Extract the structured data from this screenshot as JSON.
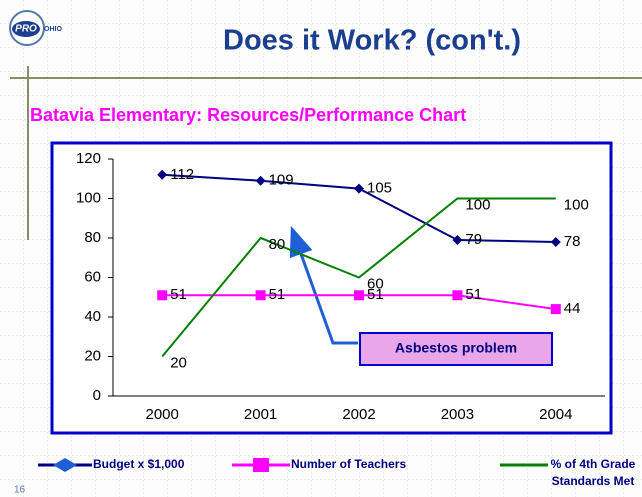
{
  "header": {
    "logo_text": "PRO",
    "logo_subtext": "OHIO",
    "title": "Does it Work? (con't.)",
    "slide_number": "16"
  },
  "chart_data": {
    "type": "line",
    "title": "Batavia Elementary: Resources/Performance Chart",
    "categories": [
      "2000",
      "2001",
      "2002",
      "2003",
      "2004"
    ],
    "series": [
      {
        "name": "Budget x $1,000",
        "color": "#000080",
        "marker": "diamond",
        "values": [
          112,
          109,
          105,
          79,
          78
        ]
      },
      {
        "name": "Number of Teachers",
        "color": "#ff00ff",
        "marker": "square",
        "values": [
          51,
          51,
          51,
          51,
          44
        ]
      },
      {
        "name": "% of 4th Grade Standards Met",
        "color": "#008000",
        "marker": "none",
        "values": [
          20,
          80,
          60,
          100,
          100
        ]
      }
    ],
    "ylim": [
      0,
      120
    ],
    "yticks": [
      0,
      20,
      40,
      60,
      80,
      100,
      120
    ],
    "grid": false,
    "legend": "bottom",
    "annotations": [
      {
        "text": "Asbestos problem"
      }
    ]
  }
}
